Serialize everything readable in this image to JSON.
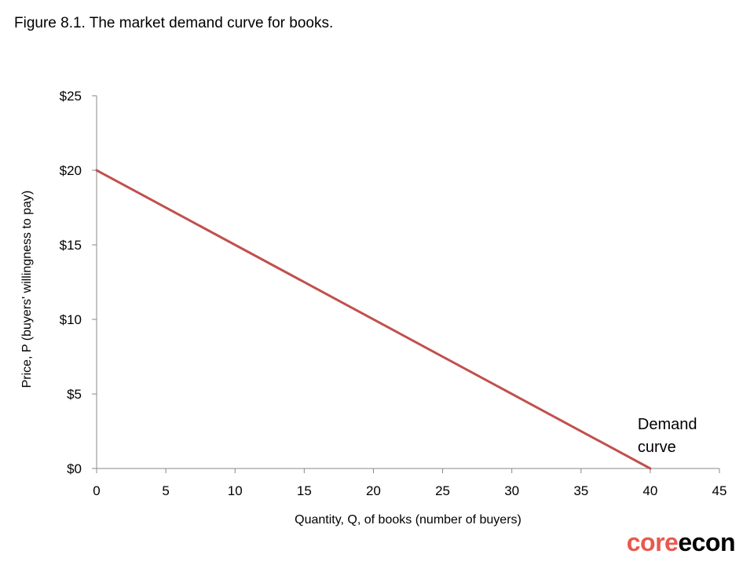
{
  "figure": {
    "title": "Figure 8.1. The market demand curve for books."
  },
  "chart_data": {
    "type": "line",
    "title": "Figure 8.1. The market demand curve for books.",
    "xlabel": "Quantity, Q, of books (number of buyers)",
    "ylabel": "Price, P (buyers' willingness to pay)",
    "xlim": [
      0,
      45
    ],
    "ylim": [
      0,
      25
    ],
    "x_ticks": [
      0,
      5,
      10,
      15,
      20,
      25,
      30,
      35,
      40,
      45
    ],
    "y_ticks": [
      0,
      5,
      10,
      15,
      20,
      25
    ],
    "x_tick_labels": [
      "0",
      "5",
      "10",
      "15",
      "20",
      "25",
      "30",
      "35",
      "40",
      "45"
    ],
    "y_tick_labels": [
      "$0",
      "$5",
      "$10",
      "$15",
      "$20",
      "$25"
    ],
    "grid": false,
    "series": [
      {
        "color": "#c0504d",
        "points": [
          [
            0,
            20
          ],
          [
            40,
            0
          ]
        ]
      }
    ],
    "annotations": [
      {
        "text_lines": [
          "Demand",
          "curve"
        ],
        "x": 40,
        "y": 0
      }
    ]
  },
  "logo": {
    "part1": "core",
    "part2": "econ"
  }
}
